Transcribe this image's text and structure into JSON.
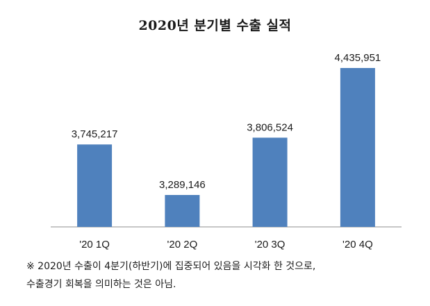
{
  "chart_data": {
    "type": "bar",
    "title": "2020년 분기별 수출 실적",
    "categories": [
      "'20 1Q",
      "'20 2Q",
      "'20 3Q",
      "'20 4Q"
    ],
    "values": [
      3745217,
      3289146,
      3806524,
      4435951
    ],
    "value_labels": [
      "3,745,217",
      "3,289,146",
      "3,806,524",
      "4,435,951"
    ],
    "bar_color": "#4f81bd",
    "grid": false,
    "legend": "none"
  },
  "footnote": {
    "line1": "※ 2020년 수출이 4분기(하반기)에 집중되어 있음을 시각화 한 것으로,",
    "line2": "수출경기 회복을 의미하는 것은 아님."
  }
}
